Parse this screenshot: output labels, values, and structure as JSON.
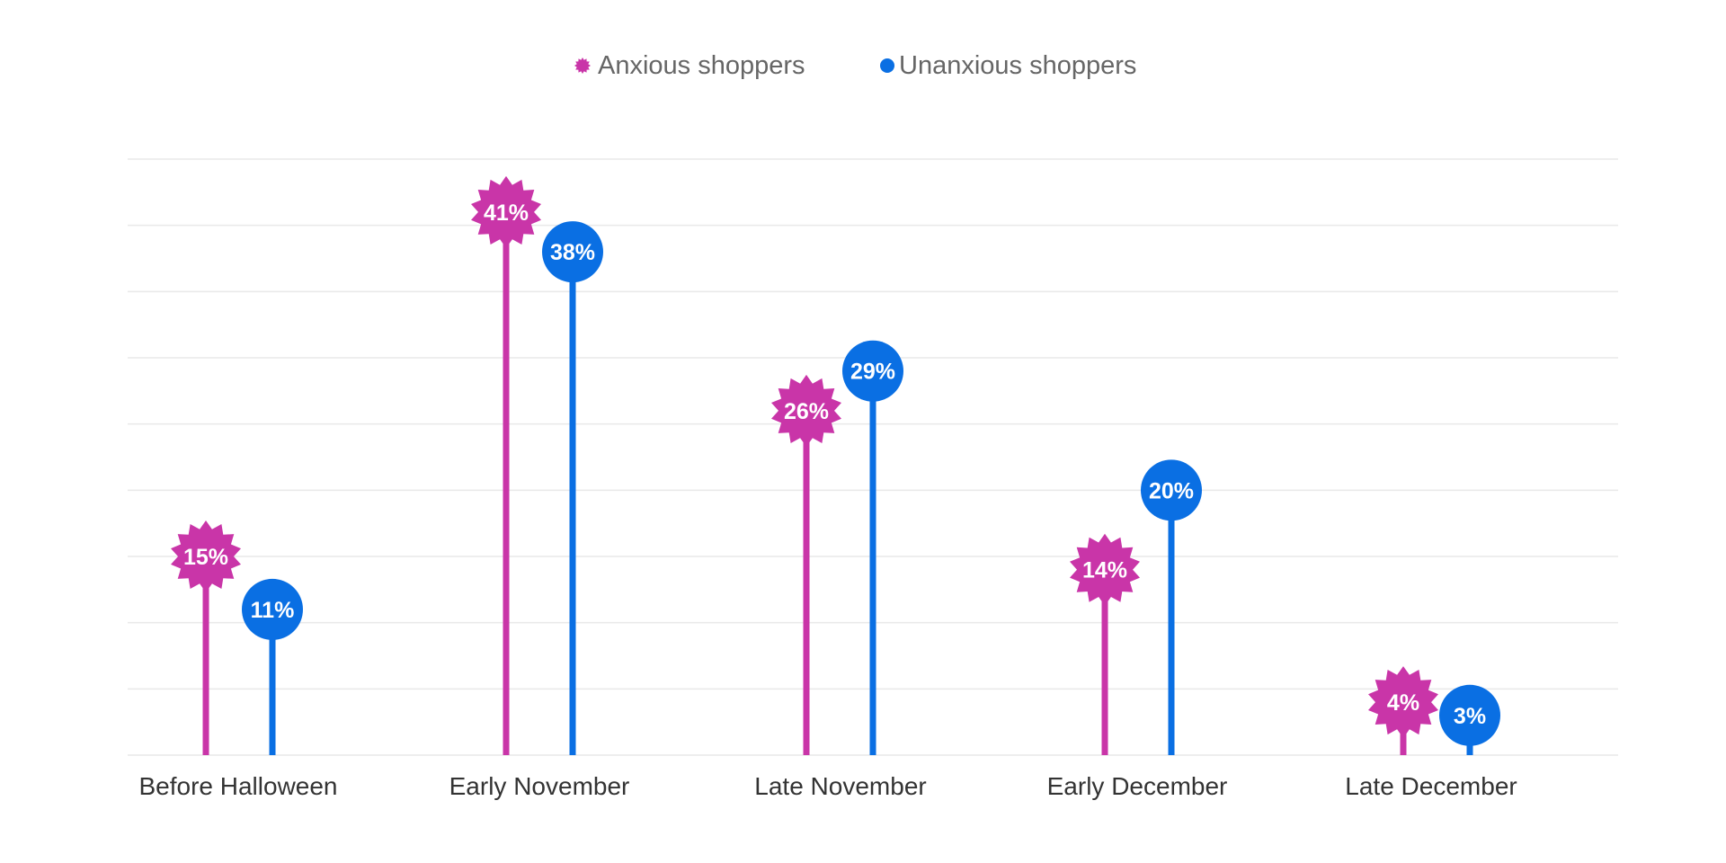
{
  "chart_data": {
    "type": "lollipop",
    "categories": [
      "Before Halloween",
      "Early November",
      "Late November",
      "Early December",
      "Late December"
    ],
    "series": [
      {
        "name": "Anxious shoppers",
        "color": "#c935a8",
        "marker": "starburst",
        "values": [
          15,
          41,
          26,
          14,
          4
        ]
      },
      {
        "name": "Unanxious shoppers",
        "color": "#0a6fe3",
        "marker": "circle",
        "values": [
          11,
          38,
          29,
          20,
          3
        ]
      }
    ],
    "value_format": "{v}%",
    "ylim": [
      0,
      45
    ],
    "grid": true,
    "gridline_count": 9,
    "legend_position": "top-center",
    "grid_color": "#e9e9e9"
  }
}
